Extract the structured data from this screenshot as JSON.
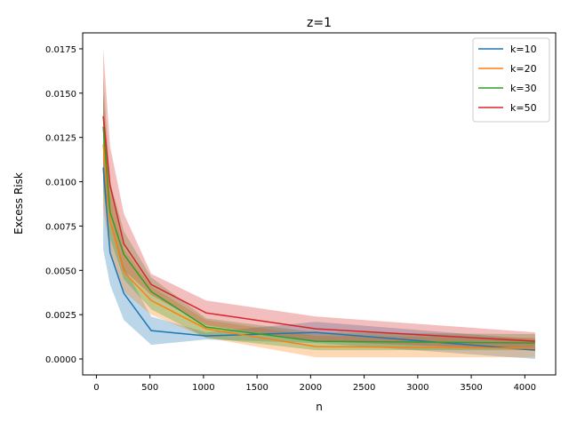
{
  "chart_data": {
    "type": "line",
    "title": "z=1",
    "xlabel": "n",
    "ylabel": "Excess Risk",
    "xlim": [
      -128,
      4288
    ],
    "ylim": [
      -0.0009,
      0.0184
    ],
    "xticks": [
      0,
      500,
      1000,
      1500,
      2000,
      2500,
      3000,
      3500,
      4000
    ],
    "xtick_labels": [
      "0",
      "500",
      "1000",
      "1500",
      "2000",
      "2500",
      "3000",
      "3500",
      "4000"
    ],
    "yticks": [
      0,
      0.0025,
      0.005,
      0.0075,
      0.01,
      0.0125,
      0.015,
      0.0175
    ],
    "ytick_labels": [
      "0.0000",
      "0.0025",
      "0.0050",
      "0.0075",
      "0.0100",
      "0.0125",
      "0.0150",
      "0.0175"
    ],
    "grid": false,
    "legend_position": "top-right",
    "x": [
      64,
      128,
      256,
      512,
      1024,
      2048,
      4096
    ],
    "series": [
      {
        "name": "k=10",
        "color": "#1f77b4",
        "values": [
          0.0108,
          0.006,
          0.0037,
          0.0016,
          0.0013,
          0.0015,
          0.0005
        ],
        "lower": [
          0.0062,
          0.0042,
          0.0022,
          0.0008,
          0.0011,
          0.0009,
          0.0
        ],
        "upper": [
          0.015,
          0.008,
          0.0052,
          0.0024,
          0.0015,
          0.0021,
          0.0011
        ]
      },
      {
        "name": "k=20",
        "color": "#ff7f0e",
        "values": [
          0.0121,
          0.0078,
          0.0049,
          0.0033,
          0.0017,
          0.0007,
          0.0006
        ],
        "lower": [
          0.0085,
          0.006,
          0.0038,
          0.0025,
          0.0012,
          0.0001,
          0.0001
        ],
        "upper": [
          0.015,
          0.0095,
          0.0062,
          0.0041,
          0.0022,
          0.0013,
          0.0012
        ]
      },
      {
        "name": "k=30",
        "color": "#2ca02c",
        "values": [
          0.0131,
          0.0083,
          0.0059,
          0.0038,
          0.0018,
          0.001,
          0.0009
        ],
        "lower": [
          0.0095,
          0.0068,
          0.0045,
          0.0028,
          0.0012,
          0.0005,
          0.0005
        ],
        "upper": [
          0.016,
          0.01,
          0.0072,
          0.0046,
          0.0023,
          0.0015,
          0.0014
        ]
      },
      {
        "name": "k=50",
        "color": "#d62728",
        "values": [
          0.0137,
          0.0098,
          0.0065,
          0.0042,
          0.0026,
          0.0017,
          0.001
        ],
        "lower": [
          0.01,
          0.008,
          0.005,
          0.0036,
          0.0019,
          0.001,
          0.0005
        ],
        "upper": [
          0.0175,
          0.012,
          0.0082,
          0.0048,
          0.0033,
          0.0024,
          0.0015
        ]
      }
    ]
  }
}
